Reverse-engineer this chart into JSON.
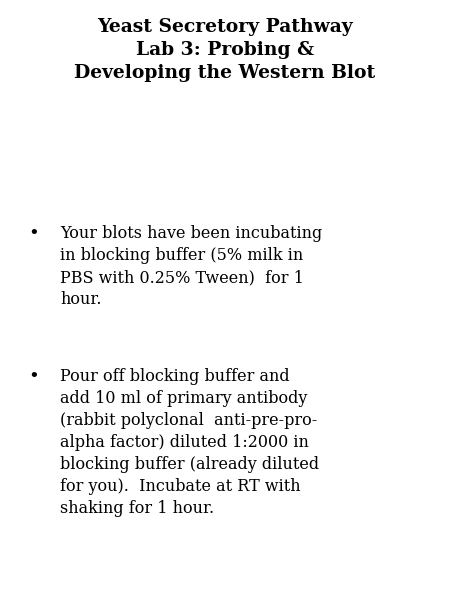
{
  "title_line1": "Yeast Secretory Pathway",
  "title_line2": "Lab 3: Probing &",
  "title_line3": "Developing the Western Blot",
  "bullet1_line1": "Your blots have been incubating",
  "bullet1_line2": "in blocking buffer (5% milk in",
  "bullet1_line3": "PBS with 0.25% Tween)  for 1",
  "bullet1_line4": "hour.",
  "bullet2_line1": "Pour off blocking buffer and",
  "bullet2_line2": "add 10 ml of primary antibody",
  "bullet2_line3": "(rabbit polyclonal  anti-pre-pro-",
  "bullet2_line4": "alpha factor) diluted 1:2000 in",
  "bullet2_line5": "blocking buffer (already diluted",
  "bullet2_line6": "for you).  Incubate at RT with",
  "bullet2_line7": "shaking for 1 hour.",
  "background_color": "#ffffff",
  "text_color": "#000000",
  "title_fontsize": 13.5,
  "body_fontsize": 11.5,
  "bullet_fontsize": 13.0
}
